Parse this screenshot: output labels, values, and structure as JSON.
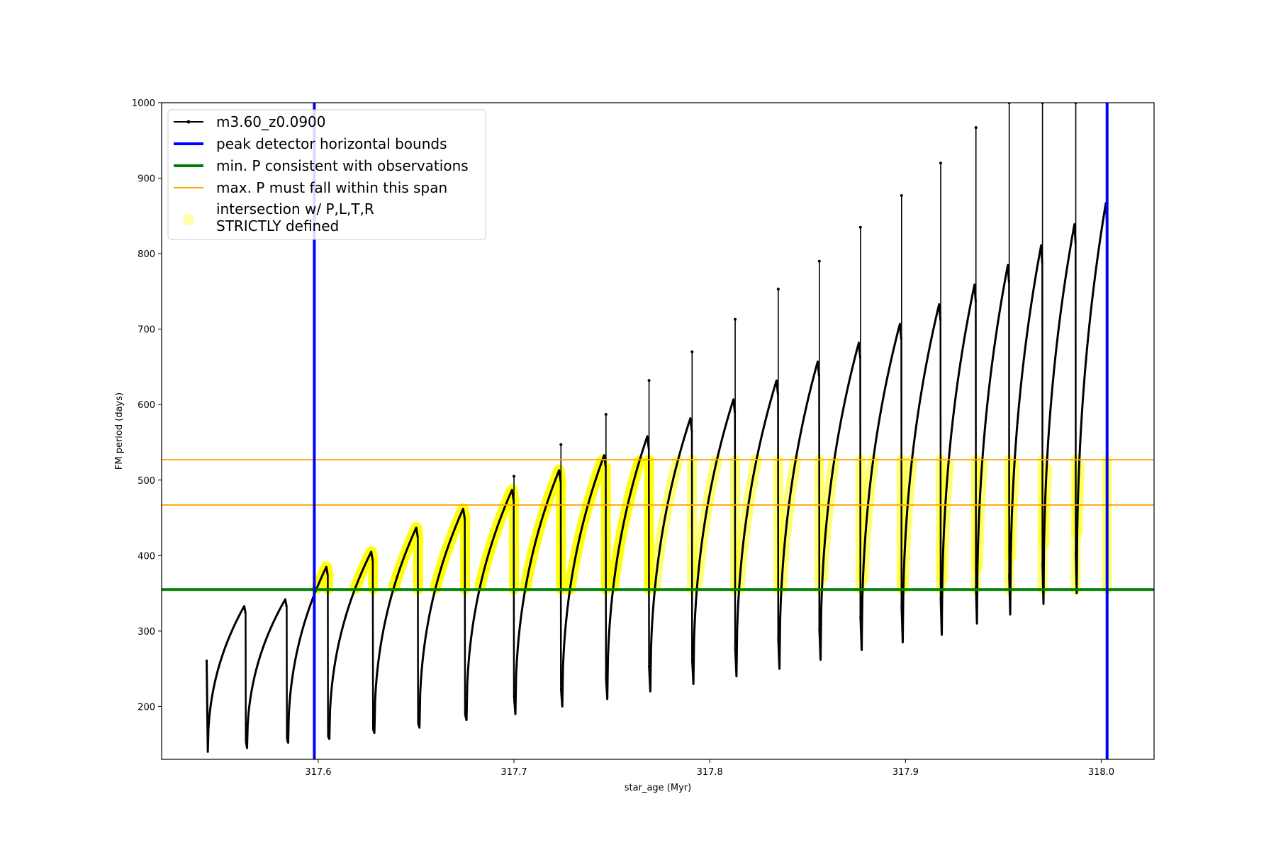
{
  "chart_data": {
    "type": "line",
    "xlabel": "star_age (Myr)",
    "ylabel": "FM period (days)",
    "xlim": [
      317.52,
      318.027
    ],
    "ylim": [
      130,
      1000
    ],
    "x_ticks": [
      317.6,
      317.7,
      317.8,
      317.9,
      318.0
    ],
    "x_tick_labels": [
      "317.6",
      "317.7",
      "317.8",
      "317.9",
      "318.0"
    ],
    "y_ticks": [
      200,
      300,
      400,
      500,
      600,
      700,
      800,
      900,
      1000
    ],
    "y_tick_labels": [
      "200",
      "300",
      "400",
      "500",
      "600",
      "700",
      "800",
      "900",
      "1000"
    ],
    "grid": false,
    "legend_position": "upper-left",
    "colors": {
      "model": "#000000",
      "bounds": "#0000ff",
      "min_p": "#008000",
      "max_p_span": "#ffa500",
      "intersection": "#ffff00"
    },
    "legend": [
      {
        "key": "model",
        "label": "m3.60_z0.0900"
      },
      {
        "key": "bounds",
        "label": "peak detector horizontal bounds"
      },
      {
        "key": "min_p",
        "label": "min. P consistent with observations"
      },
      {
        "key": "max_p_span",
        "label": "max. P must fall within this span"
      },
      {
        "key": "intersection",
        "label": "intersection w/ P,L,T,R",
        "label2": "STRICTLY defined"
      }
    ],
    "peak_detector_bounds_x": [
      317.598,
      318.003
    ],
    "min_p_consistent": 355,
    "max_p_span": [
      467,
      527
    ],
    "series": [
      {
        "key": "model",
        "description_points": "cycle minima/maxima of FM period per pulse cycle",
        "cycles": [
          {
            "t0": 317.543,
            "t1": 317.563,
            "min": 140,
            "max": 333,
            "start": 262
          },
          {
            "t0": 317.563,
            "t1": 317.584,
            "min": 145,
            "max": 342,
            "start": 155
          },
          {
            "t0": 317.584,
            "t1": 317.605,
            "min": 152,
            "max": 385,
            "start": 157
          },
          {
            "t0": 317.605,
            "t1": 317.628,
            "min": 157,
            "max": 405,
            "start": 160
          },
          {
            "t0": 317.628,
            "t1": 317.651,
            "min": 165,
            "max": 437,
            "start": 170
          },
          {
            "t0": 317.651,
            "t1": 317.675,
            "min": 172,
            "max": 462,
            "start": 178
          },
          {
            "t0": 317.675,
            "t1": 317.7,
            "min": 182,
            "max": 487,
            "start": 190
          },
          {
            "t0": 317.7,
            "t1": 317.724,
            "min": 190,
            "max": 513,
            "start": 215
          },
          {
            "t0": 317.724,
            "t1": 317.747,
            "min": 200,
            "max": 533,
            "start": 225
          },
          {
            "t0": 317.747,
            "t1": 317.769,
            "min": 210,
            "max": 558,
            "start": 240
          },
          {
            "t0": 317.769,
            "t1": 317.791,
            "min": 220,
            "max": 582,
            "start": 255
          },
          {
            "t0": 317.791,
            "t1": 317.813,
            "min": 230,
            "max": 607,
            "start": 265
          },
          {
            "t0": 317.813,
            "t1": 317.835,
            "min": 240,
            "max": 632,
            "start": 280
          },
          {
            "t0": 317.835,
            "t1": 317.856,
            "min": 250,
            "max": 657,
            "start": 292
          },
          {
            "t0": 317.856,
            "t1": 317.877,
            "min": 262,
            "max": 682,
            "start": 305
          },
          {
            "t0": 317.877,
            "t1": 317.898,
            "min": 275,
            "max": 707,
            "start": 320
          },
          {
            "t0": 317.898,
            "t1": 317.918,
            "min": 285,
            "max": 733,
            "start": 335
          },
          {
            "t0": 317.918,
            "t1": 317.936,
            "min": 295,
            "max": 759,
            "start": 345
          },
          {
            "t0": 317.936,
            "t1": 317.953,
            "min": 310,
            "max": 785,
            "start": 360
          },
          {
            "t0": 317.953,
            "t1": 317.97,
            "min": 322,
            "max": 811,
            "start": 375
          },
          {
            "t0": 317.97,
            "t1": 317.987,
            "min": 336,
            "max": 839,
            "start": 390
          },
          {
            "t0": 317.987,
            "t1": 318.003,
            "min": 350,
            "max": 867,
            "start": 405
          }
        ],
        "spikes": [
          {
            "x": 317.7,
            "top": 505
          },
          {
            "x": 317.724,
            "top": 547
          },
          {
            "x": 317.747,
            "top": 587
          },
          {
            "x": 317.769,
            "top": 632
          },
          {
            "x": 317.791,
            "top": 670
          },
          {
            "x": 317.813,
            "top": 713
          },
          {
            "x": 317.835,
            "top": 753
          },
          {
            "x": 317.856,
            "top": 790
          },
          {
            "x": 317.877,
            "top": 835
          },
          {
            "x": 317.898,
            "top": 877
          },
          {
            "x": 317.918,
            "top": 920
          },
          {
            "x": 317.936,
            "top": 967
          },
          {
            "x": 317.953,
            "top": 1000
          },
          {
            "x": 317.97,
            "top": 1000
          },
          {
            "x": 317.987,
            "top": 1000
          }
        ]
      }
    ]
  }
}
